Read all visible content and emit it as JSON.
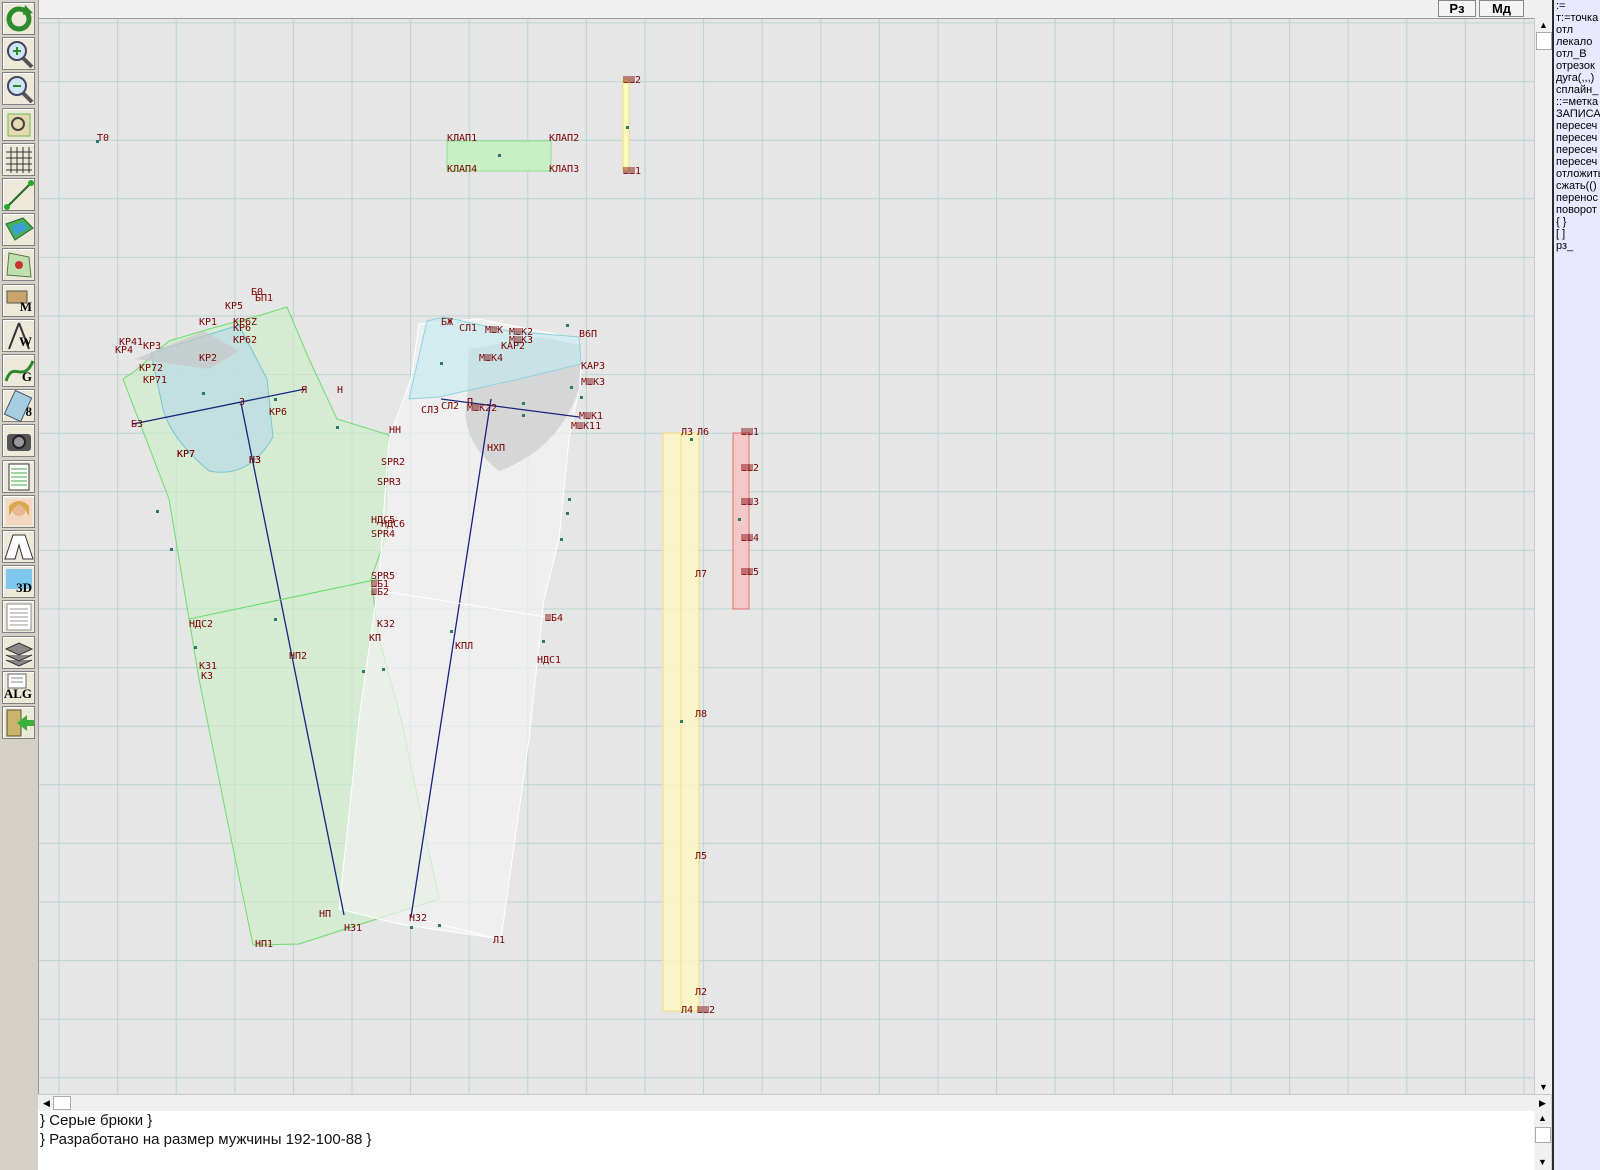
{
  "toolbar": {
    "tools": [
      {
        "name": "refresh-icon",
        "label": ""
      },
      {
        "name": "zoom-in-icon",
        "label": ""
      },
      {
        "name": "zoom-out-icon",
        "label": ""
      },
      {
        "name": "zoom-fit-icon",
        "label": ""
      },
      {
        "name": "grid-icon",
        "label": ""
      },
      {
        "name": "line-tool-icon",
        "label": ""
      },
      {
        "name": "map-icon",
        "label": ""
      },
      {
        "name": "pattern-icon",
        "label": ""
      },
      {
        "name": "measure-icon",
        "label": "M"
      },
      {
        "name": "compass-icon",
        "label": "W"
      },
      {
        "name": "curve-icon",
        "label": "G"
      },
      {
        "name": "ruler-icon",
        "label": "8"
      },
      {
        "name": "camera-icon",
        "label": ""
      },
      {
        "name": "table-icon",
        "label": ""
      },
      {
        "name": "model-photo-icon",
        "label": ""
      },
      {
        "name": "jacket-icon",
        "label": ""
      },
      {
        "name": "view-3d-icon",
        "label": "3D"
      },
      {
        "name": "document-icon",
        "label": ""
      },
      {
        "name": "layers-icon",
        "label": ""
      },
      {
        "name": "algorithm-icon",
        "label": "ALG"
      },
      {
        "name": "exit-icon",
        "label": ""
      }
    ]
  },
  "top_buttons": {
    "rz": "Рз",
    "md": "Мд"
  },
  "commands": [
    ":=",
    "т:=точка",
    "отл",
    "лекало",
    "отл_В",
    "отрезок",
    "дуга(,,,)",
    "сплайн_",
    "::=метка",
    "ЗАПИСАТЬ",
    "пересеч",
    "пересеч",
    "пересеч",
    "пересеч",
    "отложить",
    "сжать(()",
    "перенос",
    "поворот",
    "{ }",
    "[ ]",
    "рз_"
  ],
  "console": {
    "lines": [
      "} Серые брюки }",
      "} Разработано на размер мужчины 192-100-88 }"
    ]
  },
  "labels": [
    "Т0",
    "КЛАП1",
    "КЛАП2",
    "КЛАП3",
    "КЛАП4",
    "ШШ2",
    "ШШ1",
    "Б0",
    "БП1",
    "КР5",
    "КР6",
    "КР6Z",
    "КР62",
    "КР2",
    "КР1",
    "КР7",
    "КР72",
    "КР71",
    "КР3",
    "КР4",
    "КР41",
    "БЗ",
    "З",
    "Я",
    "КР6",
    "КР7",
    "НЗ",
    "Н3",
    "Н",
    "БЖ",
    "СЛ1",
    "МШК",
    "МШК2",
    "МШК3",
    "МШК4",
    "В6П",
    "КАР2",
    "КАР3",
    "МШК3",
    "СЛ3",
    "СЛ2",
    "МШК22",
    "П",
    "МШК1",
    "МШК11",
    "НН",
    "НХП",
    "SPR2",
    "SPR3",
    "НДС5",
    "НДС6",
    "SPR4",
    "SPR5",
    "ШБ1",
    "ШБ2",
    "ШБ4",
    "НДС2",
    "КЗ2",
    "КП",
    "КПЛ",
    "НДС1",
    "КЗ1",
    "КЗ",
    "НП2",
    "НП",
    "НЗ2",
    "НЗ1",
    "НП1",
    "Л1",
    "Л3",
    "Л6",
    "Л7",
    "Л8",
    "Л5",
    "Л2",
    "Л4",
    "ШШ2",
    "ШШ1",
    "ШШ2",
    "ШШ3",
    "ШШ4",
    "ШШ5"
  ]
}
